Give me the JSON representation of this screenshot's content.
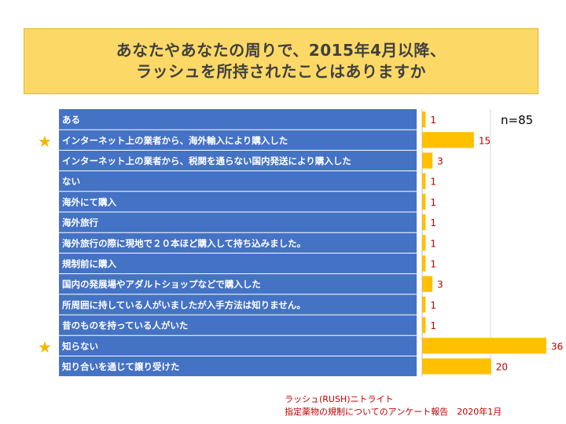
{
  "title": {
    "line1": "あなたやあなたの周りで、2015年4月以降、",
    "line2": "ラッシュを所持されたことはありますか"
  },
  "sample_size": "n=85",
  "footnote": {
    "line1": "ラッシュ(RUSH)ニトライト",
    "line2": "指定薬物の規制についてのアンケート報告　2020年1月"
  },
  "colors": {
    "label_bg": "#4472c4",
    "bar": "#ffc000",
    "value_text": "#c00000",
    "title_bg": "#fcd966",
    "star": "#f2b800"
  },
  "stars": [
    "★",
    "★"
  ],
  "chart_data": {
    "type": "bar",
    "orientation": "horizontal",
    "categories": [
      "ある",
      "インターネット上の業者から、海外輸入により購入した",
      "インターネット上の業者から、税関を通らない国内発送により購入した",
      "ない",
      "海外にて購入",
      "海外旅行",
      "海外旅行の際に現地で２０本ほど購入して持ち込みました。",
      "規制前に購入",
      "国内の発展場やアダルトショップなどで購入した",
      "所周囲に持している人がいましたが入手方法は知りません。",
      "昔のものを持っている人がいた",
      "知らない",
      "知り合いを通じて譲り受けた"
    ],
    "values": [
      1,
      15,
      3,
      1,
      1,
      1,
      1,
      1,
      3,
      1,
      1,
      36,
      20
    ],
    "data_labels": [
      "1",
      "15",
      "3",
      "1",
      "1",
      "1",
      "1",
      "1",
      "3",
      "1",
      "1",
      "36",
      "20"
    ],
    "starred_categories": [
      "インターネット上の業者から、海外輸入により購入した",
      "知らない"
    ],
    "xlim": [
      0,
      36
    ],
    "grid": false,
    "legend": "none"
  }
}
